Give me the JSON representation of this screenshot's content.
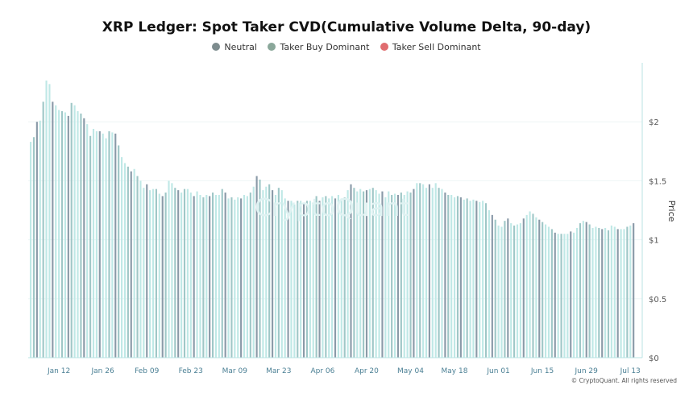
{
  "title": "XRP Ledger: Spot Taker CVD(Cumulative Volume Delta, 90-day)",
  "legend": [
    {
      "label": "Neutral",
      "color": "#7d8c8e"
    },
    {
      "label": "Taker Buy Dominant",
      "color": "#8aa79a"
    },
    {
      "label": "Taker Sell Dominant",
      "color": "#e06c6f"
    }
  ],
  "watermark": "CryptoQuant",
  "copyright": "© CryptoQuant. All rights reserved",
  "colors": {
    "bar_light": "#bfe8e6",
    "bar_mid": "#9fc7c7",
    "bar_dark": "#8a9aa8",
    "axis": "#b9e3e3",
    "text": "#555555",
    "tick_text": "#4a7f94"
  },
  "chart_data": {
    "type": "bar",
    "ylabel": "Price",
    "ylim": [
      0,
      2.5
    ],
    "yticks": [
      {
        "value": 0,
        "label": "$0"
      },
      {
        "value": 0.5,
        "label": "$0.5"
      },
      {
        "value": 1,
        "label": "$1"
      },
      {
        "value": 1.5,
        "label": "$1.5"
      },
      {
        "value": 2,
        "label": "$2"
      }
    ],
    "xticks": [
      {
        "index": 9,
        "label": "Jan 12"
      },
      {
        "index": 23,
        "label": "Jan 26"
      },
      {
        "index": 37,
        "label": "Feb 09"
      },
      {
        "index": 51,
        "label": "Feb 23"
      },
      {
        "index": 65,
        "label": "Mar 09"
      },
      {
        "index": 79,
        "label": "Mar 23"
      },
      {
        "index": 93,
        "label": "Apr 06"
      },
      {
        "index": 107,
        "label": "Apr 20"
      },
      {
        "index": 121,
        "label": "May 04"
      },
      {
        "index": 135,
        "label": "May 18"
      },
      {
        "index": 149,
        "label": "Jun 01"
      },
      {
        "index": 163,
        "label": "Jun 15"
      },
      {
        "index": 177,
        "label": "Jun 29"
      },
      {
        "index": 191,
        "label": "Jul 13"
      }
    ],
    "values": [
      1.83,
      1.87,
      2.0,
      2.01,
      2.17,
      2.35,
      2.32,
      2.17,
      2.14,
      2.1,
      2.09,
      2.08,
      2.05,
      2.16,
      2.14,
      2.09,
      2.07,
      2.03,
      1.98,
      1.88,
      1.94,
      1.92,
      1.92,
      1.9,
      1.86,
      1.92,
      1.91,
      1.9,
      1.8,
      1.7,
      1.65,
      1.62,
      1.58,
      1.6,
      1.54,
      1.5,
      1.44,
      1.47,
      1.42,
      1.43,
      1.43,
      1.39,
      1.37,
      1.4,
      1.5,
      1.48,
      1.44,
      1.42,
      1.4,
      1.43,
      1.43,
      1.4,
      1.37,
      1.41,
      1.38,
      1.36,
      1.38,
      1.37,
      1.4,
      1.38,
      1.38,
      1.43,
      1.4,
      1.35,
      1.36,
      1.34,
      1.36,
      1.35,
      1.38,
      1.37,
      1.4,
      1.45,
      1.54,
      1.51,
      1.42,
      1.45,
      1.47,
      1.42,
      1.38,
      1.44,
      1.42,
      1.35,
      1.33,
      1.33,
      1.3,
      1.33,
      1.33,
      1.31,
      1.33,
      1.33,
      1.3,
      1.37,
      1.33,
      1.36,
      1.37,
      1.35,
      1.37,
      1.35,
      1.38,
      1.35,
      1.36,
      1.42,
      1.47,
      1.44,
      1.41,
      1.43,
      1.41,
      1.42,
      1.43,
      1.44,
      1.42,
      1.39,
      1.41,
      1.36,
      1.41,
      1.38,
      1.39,
      1.38,
      1.4,
      1.38,
      1.41,
      1.4,
      1.43,
      1.48,
      1.48,
      1.47,
      1.44,
      1.47,
      1.44,
      1.48,
      1.44,
      1.43,
      1.4,
      1.38,
      1.38,
      1.36,
      1.37,
      1.36,
      1.34,
      1.35,
      1.33,
      1.34,
      1.33,
      1.32,
      1.33,
      1.31,
      1.25,
      1.21,
      1.17,
      1.12,
      1.11,
      1.16,
      1.18,
      1.14,
      1.12,
      1.13,
      1.14,
      1.18,
      1.21,
      1.24,
      1.22,
      1.19,
      1.17,
      1.15,
      1.13,
      1.11,
      1.09,
      1.06,
      1.05,
      1.05,
      1.05,
      1.05,
      1.07,
      1.06,
      1.1,
      1.14,
      1.16,
      1.15,
      1.13,
      1.1,
      1.11,
      1.1,
      1.09,
      1.1,
      1.08,
      1.12,
      1.11,
      1.09,
      1.09,
      1.09,
      1.11,
      1.12,
      1.14
    ]
  }
}
